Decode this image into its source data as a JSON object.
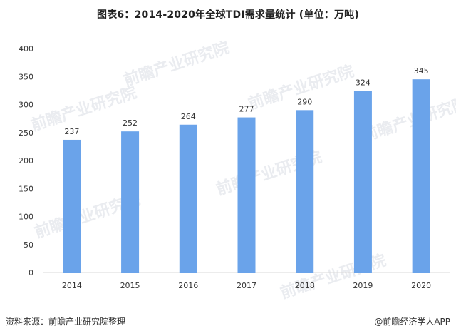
{
  "title": "图表6：2014-2020年全球TDI需求量统计 (单位：万吨)",
  "footer": {
    "source": "资料来源：前瞻产业研究院整理",
    "credit": "@前瞻经济学人APP"
  },
  "watermark": {
    "text": "前瞻产业研究院"
  },
  "colors": {
    "bar": "#6aa3ea",
    "axis": "#d9d9d9",
    "text": "#333333"
  },
  "chart_data": {
    "type": "bar",
    "title": "图表6：2014-2020年全球TDI需求量统计 (单位：万吨)",
    "categories": [
      "2014",
      "2015",
      "2016",
      "2017",
      "2018",
      "2019",
      "2020"
    ],
    "values": [
      237,
      252,
      264,
      277,
      290,
      324,
      345
    ],
    "ylim": [
      0,
      400
    ],
    "yticks": [
      0,
      50,
      100,
      150,
      200,
      250,
      300,
      350,
      400
    ],
    "grid": false,
    "data_labels": true
  }
}
